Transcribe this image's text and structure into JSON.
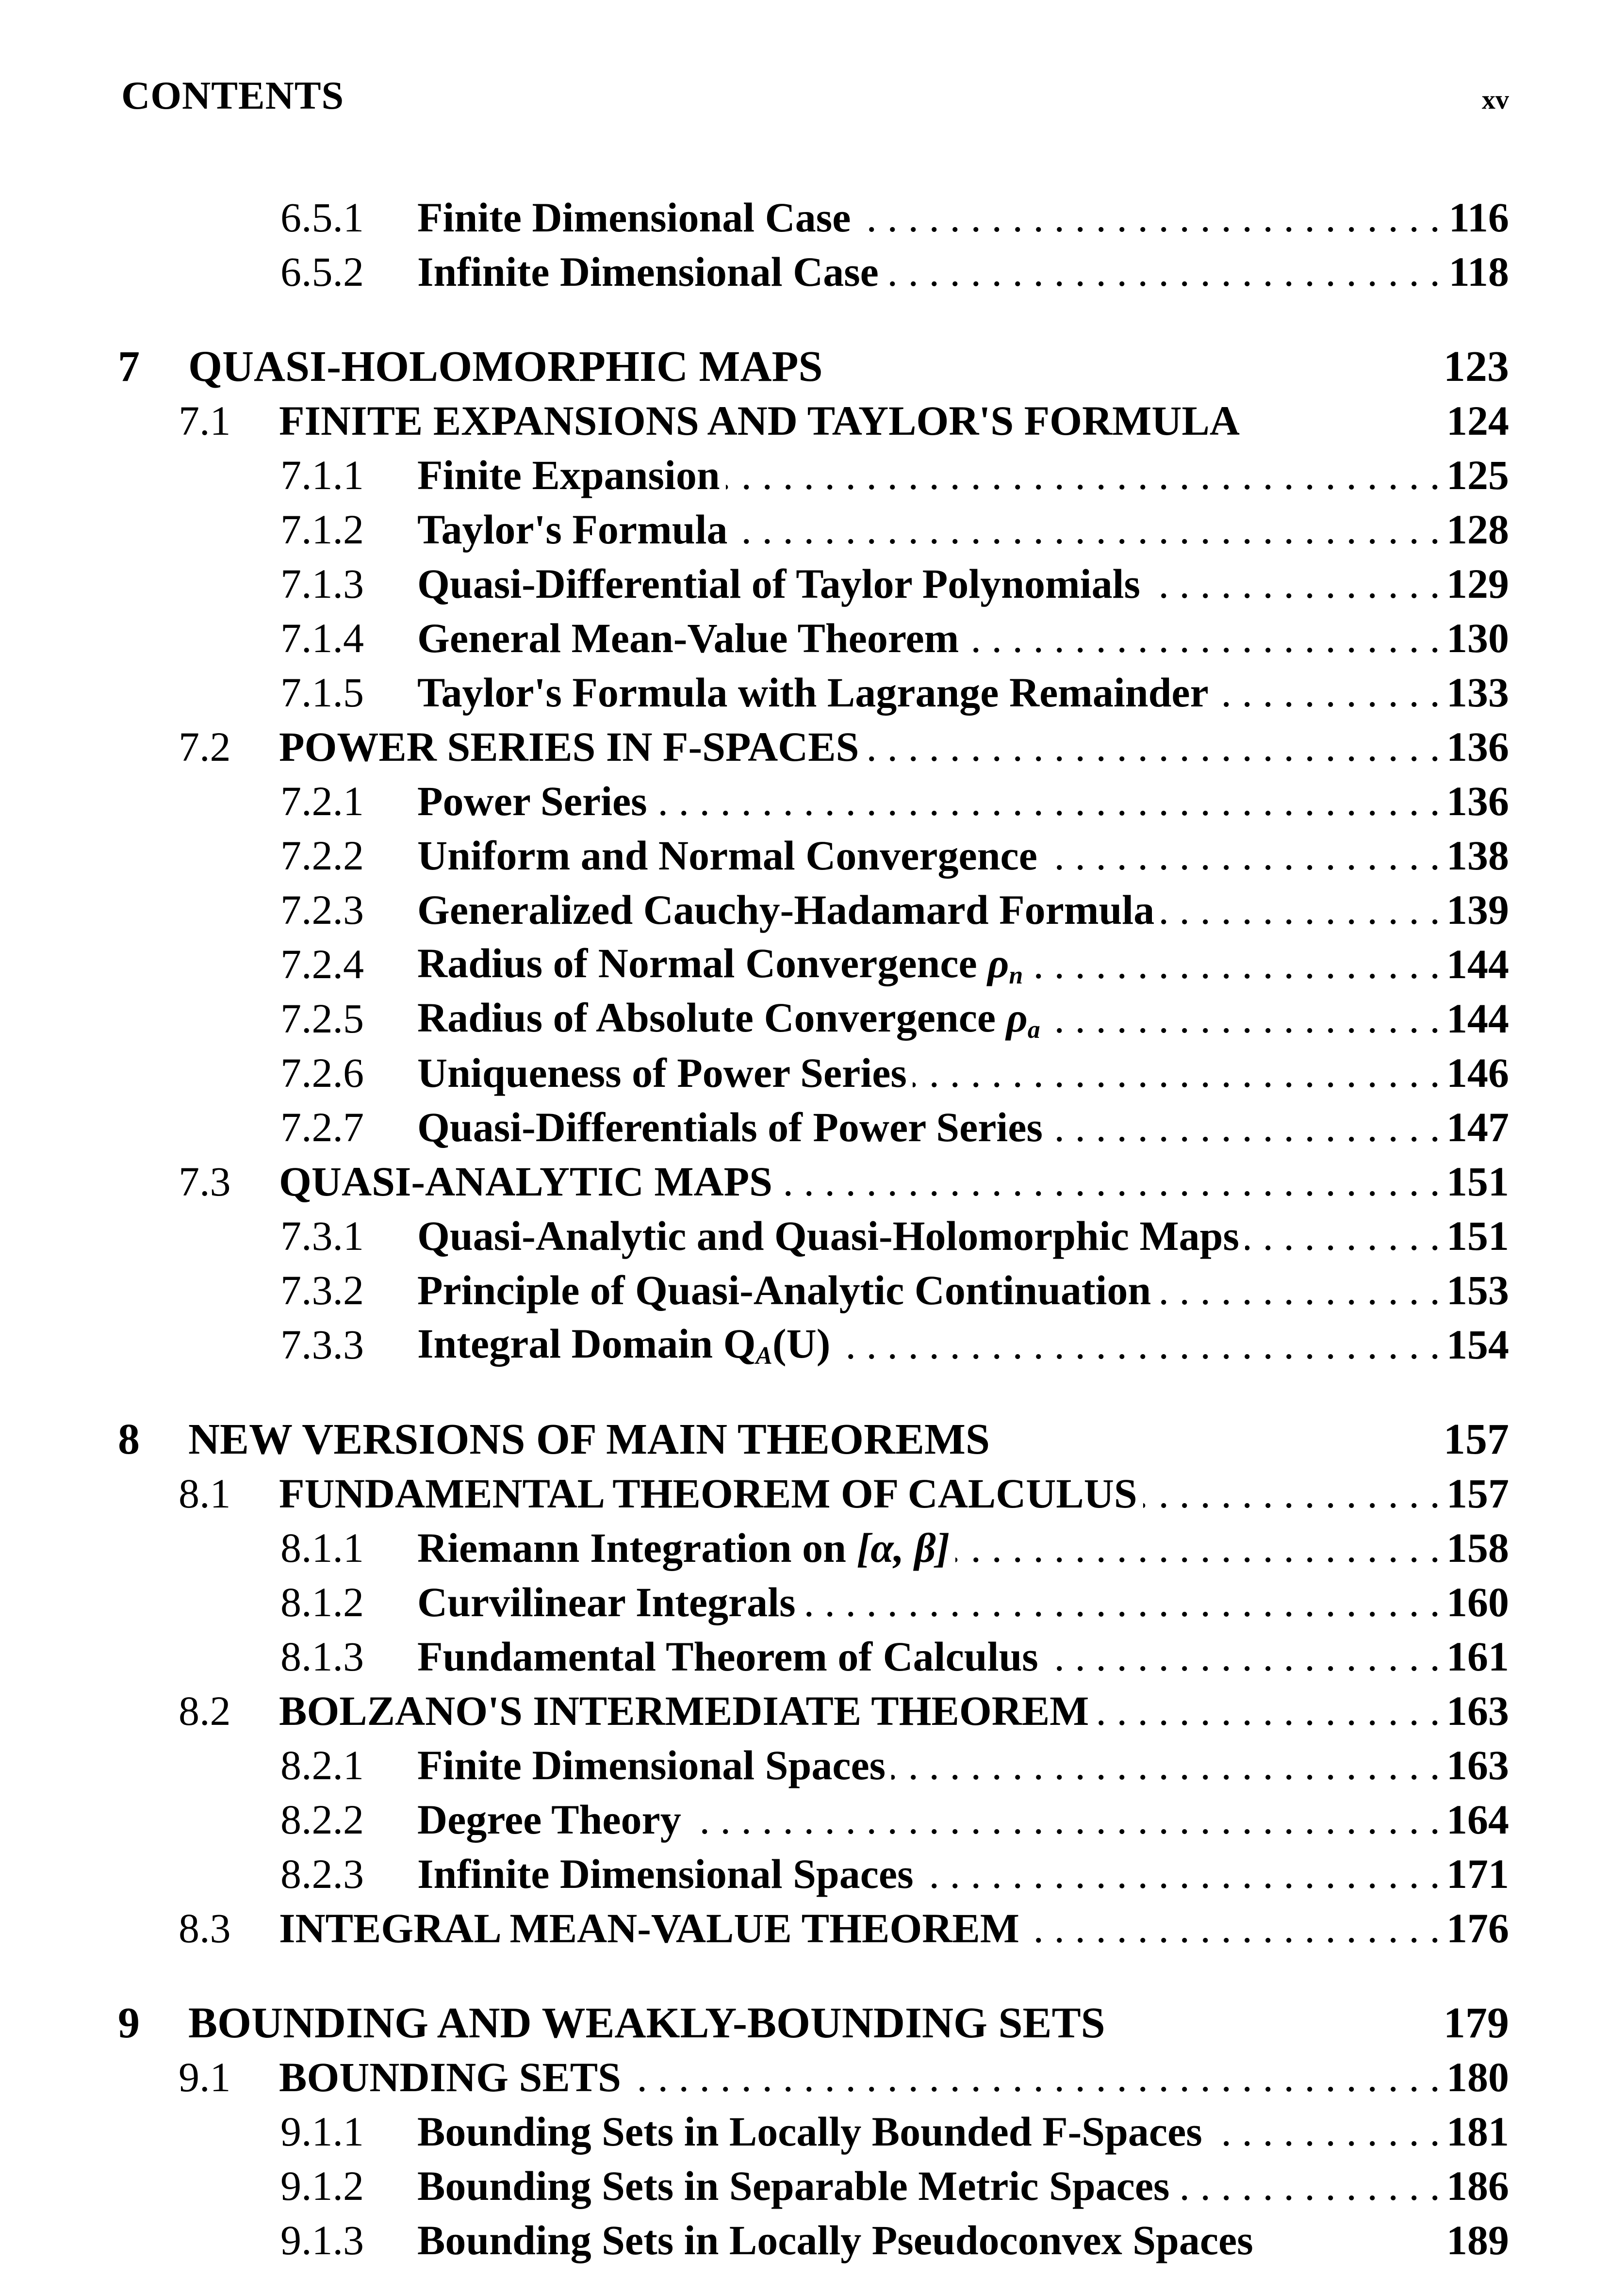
{
  "header": {
    "title": "CONTENTS",
    "page": "xv"
  },
  "entries": [
    {
      "type": "subsection",
      "num": "6.5.1",
      "title": "Finite Dimensional Case",
      "page": "116"
    },
    {
      "type": "subsection",
      "num": "6.5.2",
      "title": "Infinite Dimensional Case",
      "page": "118"
    },
    {
      "type": "chapter",
      "num": "7",
      "title": "QUASI-HOLOMORPHIC MAPS",
      "page": "123"
    },
    {
      "type": "section",
      "num": "7.1",
      "title": "FINITE EXPANSIONS AND TAYLOR'S FORMULA",
      "page": "124",
      "noleader": true
    },
    {
      "type": "subsection",
      "num": "7.1.1",
      "title": "Finite Expansion",
      "page": "125"
    },
    {
      "type": "subsection",
      "num": "7.1.2",
      "title": "Taylor's Formula",
      "page": "128"
    },
    {
      "type": "subsection",
      "num": "7.1.3",
      "title": "Quasi-Differential of Taylor Polynomials",
      "page": "129"
    },
    {
      "type": "subsection",
      "num": "7.1.4",
      "title": "General Mean-Value Theorem",
      "page": "130"
    },
    {
      "type": "subsection",
      "num": "7.1.5",
      "title": "Taylor's Formula with Lagrange Remainder",
      "page": "133"
    },
    {
      "type": "section",
      "num": "7.2",
      "title": "POWER SERIES IN F-SPACES",
      "page": "136"
    },
    {
      "type": "subsection",
      "num": "7.2.1",
      "title": "Power Series",
      "page": "136"
    },
    {
      "type": "subsection",
      "num": "7.2.2",
      "title": "Uniform and Normal Convergence",
      "page": "138"
    },
    {
      "type": "subsection",
      "num": "7.2.3",
      "title": "Generalized Cauchy-Hadamard Formula",
      "page": "139"
    },
    {
      "type": "subsection",
      "num": "7.2.4",
      "title": "Radius of Normal Convergence",
      "symbol": "ρ",
      "symbol_sub": "n",
      "page": "144"
    },
    {
      "type": "subsection",
      "num": "7.2.5",
      "title": "Radius of Absolute Convergence",
      "symbol": "ρ",
      "symbol_sub": "a",
      "page": "144"
    },
    {
      "type": "subsection",
      "num": "7.2.6",
      "title": "Uniqueness of Power Series",
      "page": "146"
    },
    {
      "type": "subsection",
      "num": "7.2.7",
      "title": "Quasi-Differentials of Power Series",
      "page": "147"
    },
    {
      "type": "section",
      "num": "7.3",
      "title": "QUASI-ANALYTIC MAPS",
      "page": "151"
    },
    {
      "type": "subsection",
      "num": "7.3.1",
      "title": "Quasi-Analytic and Quasi-Holomorphic Maps",
      "page": "151"
    },
    {
      "type": "subsection",
      "num": "7.3.2",
      "title": "Principle of Quasi-Analytic Continuation",
      "page": "153"
    },
    {
      "type": "subsection",
      "num": "7.3.3",
      "title": "Integral Domain Q",
      "symbol_sub": "A",
      "suffix": "(U)",
      "page": "154"
    },
    {
      "type": "chapter",
      "num": "8",
      "title": "NEW VERSIONS OF MAIN THEOREMS",
      "page": "157"
    },
    {
      "type": "section",
      "num": "8.1",
      "title": "FUNDAMENTAL THEOREM OF CALCULUS",
      "page": "157"
    },
    {
      "type": "subsection",
      "num": "8.1.1",
      "title": "Riemann Integration on",
      "symbol": "[α, β]",
      "page": "158"
    },
    {
      "type": "subsection",
      "num": "8.1.2",
      "title": "Curvilinear Integrals",
      "page": "160"
    },
    {
      "type": "subsection",
      "num": "8.1.3",
      "title": "Fundamental Theorem of Calculus",
      "page": "161"
    },
    {
      "type": "section",
      "num": "8.2",
      "title": "BOLZANO'S INTERMEDIATE THEOREM",
      "page": "163"
    },
    {
      "type": "subsection",
      "num": "8.2.1",
      "title": "Finite Dimensional Spaces",
      "page": "163"
    },
    {
      "type": "subsection",
      "num": "8.2.2",
      "title": "Degree Theory",
      "page": "164"
    },
    {
      "type": "subsection",
      "num": "8.2.3",
      "title": "Infinite Dimensional Spaces",
      "page": "171"
    },
    {
      "type": "section",
      "num": "8.3",
      "title": "INTEGRAL MEAN-VALUE THEOREM",
      "page": "176"
    },
    {
      "type": "chapter",
      "num": "9",
      "title": "BOUNDING AND WEAKLY-BOUNDING SETS",
      "page": "179"
    },
    {
      "type": "section",
      "num": "9.1",
      "title": "BOUNDING SETS",
      "page": "180"
    },
    {
      "type": "subsection",
      "num": "9.1.1",
      "title": "Bounding Sets in Locally Bounded F-Spaces",
      "page": "181"
    },
    {
      "type": "subsection",
      "num": "9.1.2",
      "title": "Bounding Sets in Separable Metric Spaces",
      "page": "186"
    },
    {
      "type": "subsection",
      "num": "9.1.3",
      "title": "Bounding Sets in Locally Pseudoconvex Spaces",
      "page": "189",
      "noleader": true
    }
  ]
}
